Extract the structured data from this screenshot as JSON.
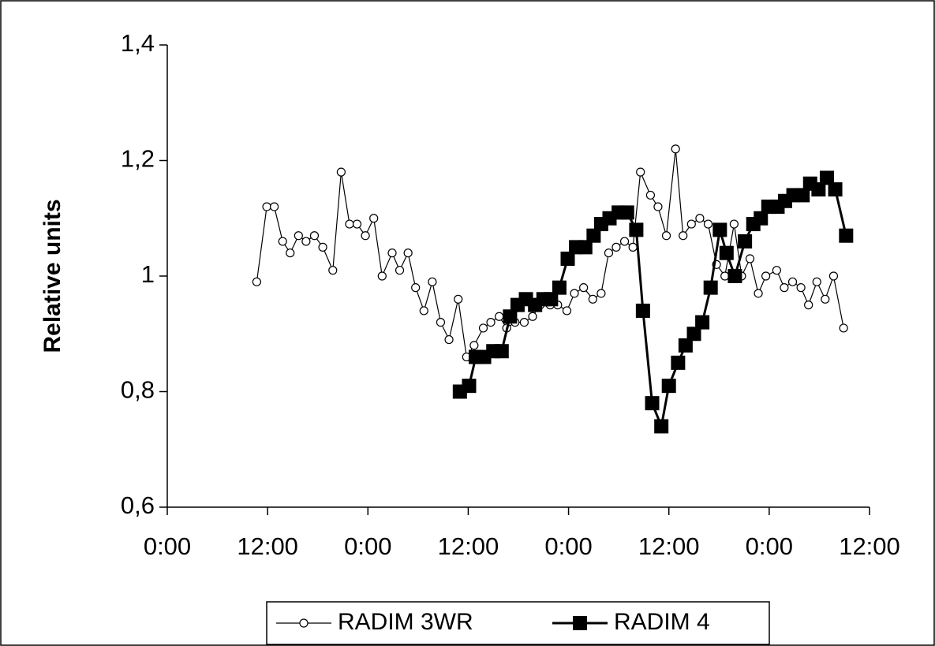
{
  "chart_data": {
    "type": "line",
    "ylabel": "Relative units",
    "xlim": [
      0,
      84
    ],
    "xticks": [
      {
        "value": 0,
        "label": "0:00"
      },
      {
        "value": 12,
        "label": "12:00"
      },
      {
        "value": 24,
        "label": "0:00"
      },
      {
        "value": 36,
        "label": "12:00"
      },
      {
        "value": 48,
        "label": "0:00"
      },
      {
        "value": 60,
        "label": "12:00"
      },
      {
        "value": 72,
        "label": "0:00"
      },
      {
        "value": 84,
        "label": "12:00"
      }
    ],
    "ylim": [
      0.6,
      1.4
    ],
    "yticks": [
      {
        "value": 0.6,
        "label": "0,6"
      },
      {
        "value": 0.8,
        "label": "0,8"
      },
      1,
      {
        "value": 1.2,
        "label": "1,2"
      },
      {
        "value": 1.4,
        "label": "1,4"
      }
    ],
    "legend": "bottom",
    "series": [
      {
        "name": "RADIM 3WR",
        "color": "#000000",
        "marker": "circle",
        "x": [
          10.7,
          11.9,
          12.8,
          13.8,
          14.7,
          15.7,
          16.6,
          17.6,
          18.6,
          19.8,
          20.8,
          21.8,
          22.7,
          23.7,
          24.7,
          25.7,
          26.9,
          27.8,
          28.8,
          29.7,
          30.7,
          31.7,
          32.7,
          33.7,
          34.8,
          35.8,
          36.7,
          37.8,
          38.7,
          39.7,
          40.6,
          41.6,
          42.7,
          43.7,
          44.6,
          45.8,
          46.7,
          47.8,
          48.7,
          49.8,
          50.9,
          51.9,
          52.8,
          53.7,
          54.7,
          55.7,
          56.6,
          57.8,
          58.7,
          59.7,
          60.8,
          61.7,
          62.7,
          63.7,
          64.7,
          65.7,
          66.7,
          67.8,
          68.7,
          69.7,
          70.7,
          71.6,
          72.9,
          73.8,
          74.8,
          75.8,
          76.7,
          77.7,
          78.7,
          79.7,
          80.9
        ],
        "values": [
          0.99,
          1.12,
          1.12,
          1.06,
          1.04,
          1.07,
          1.06,
          1.07,
          1.05,
          1.01,
          1.18,
          1.09,
          1.09,
          1.07,
          1.1,
          1.0,
          1.04,
          1.01,
          1.04,
          0.98,
          0.94,
          0.99,
          0.92,
          0.89,
          0.96,
          0.86,
          0.88,
          0.91,
          0.92,
          0.93,
          0.91,
          0.92,
          0.92,
          0.93,
          0.95,
          0.95,
          0.95,
          0.94,
          0.97,
          0.98,
          0.96,
          0.97,
          1.04,
          1.05,
          1.06,
          1.05,
          1.18,
          1.14,
          1.12,
          1.07,
          1.22,
          1.07,
          1.09,
          1.1,
          1.09,
          1.02,
          1.0,
          1.09,
          1.0,
          1.03,
          0.97,
          1.0,
          1.01,
          0.98,
          0.99,
          0.98,
          0.95,
          0.99,
          0.96,
          1.0,
          0.91
        ]
      },
      {
        "name": "RADIM 4",
        "color": "#000000",
        "marker": "square",
        "x": [
          35.0,
          36.1,
          36.9,
          37.9,
          39.0,
          40.0,
          41.0,
          41.9,
          42.9,
          44.0,
          45.0,
          45.9,
          46.9,
          47.9,
          48.9,
          50.0,
          51.0,
          51.9,
          52.9,
          54.0,
          55.0,
          56.1,
          56.9,
          58.0,
          59.1,
          60.0,
          61.1,
          62.0,
          63.0,
          64.0,
          65.0,
          66.1,
          66.9,
          67.9,
          69.1,
          70.1,
          71.0,
          71.9,
          73.0,
          73.9,
          74.9,
          76.0,
          76.9,
          77.9,
          78.9,
          79.9,
          81.2
        ],
        "values": [
          0.8,
          0.81,
          0.86,
          0.86,
          0.87,
          0.87,
          0.93,
          0.95,
          0.96,
          0.95,
          0.96,
          0.96,
          0.98,
          1.03,
          1.05,
          1.05,
          1.07,
          1.09,
          1.1,
          1.11,
          1.11,
          1.08,
          0.94,
          0.78,
          0.74,
          0.81,
          0.85,
          0.88,
          0.9,
          0.92,
          0.98,
          1.08,
          1.04,
          1.0,
          1.06,
          1.09,
          1.1,
          1.12,
          1.12,
          1.13,
          1.14,
          1.14,
          1.16,
          1.15,
          1.17,
          1.15,
          1.07
        ]
      }
    ]
  }
}
